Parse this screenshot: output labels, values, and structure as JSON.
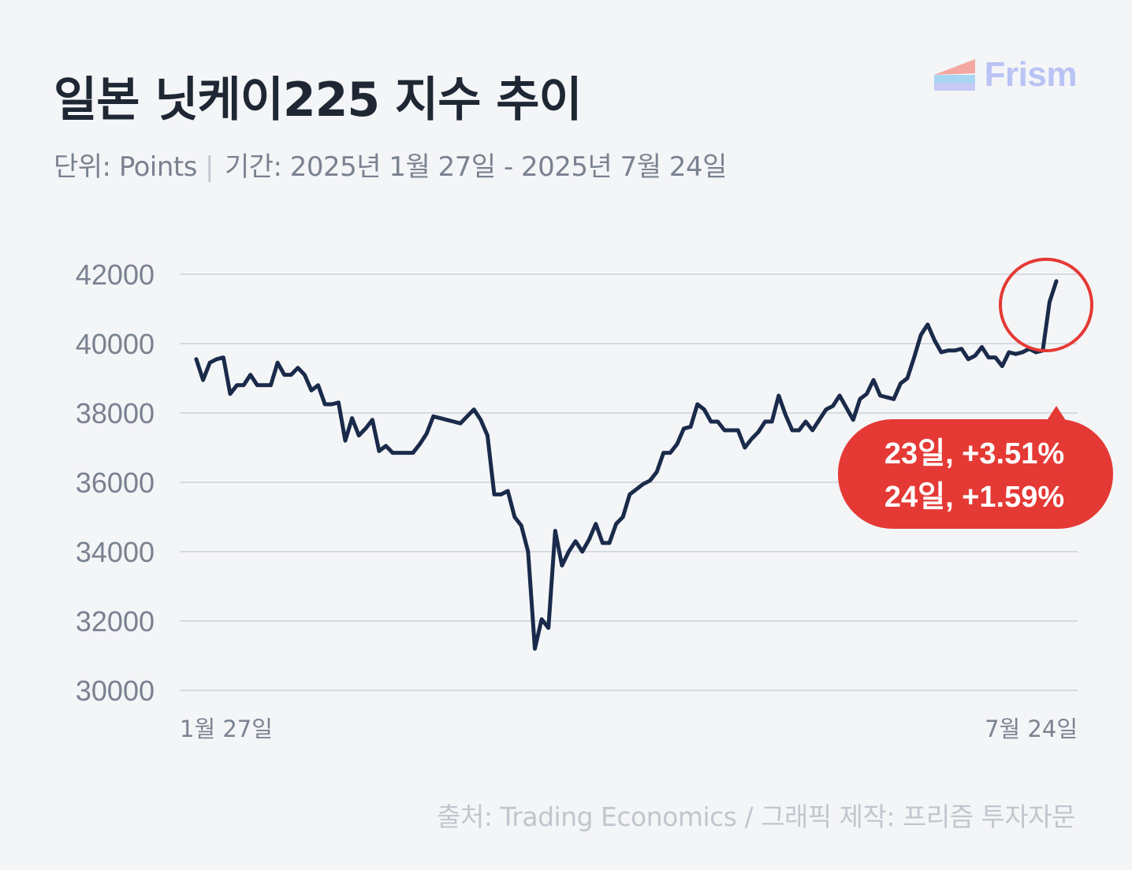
{
  "header": {
    "title": "일본 닛케이225 지수 추이",
    "unit_label": "단위: Points",
    "period_label": "기간: 2025년 1월 27일 - 2025년 7월 24일"
  },
  "logo": {
    "text": "Frism",
    "icon": "frism-logo-icon"
  },
  "annotation": {
    "line1": "23일, +3.51%",
    "line2": "24일, +1.59%",
    "color": "#e53935"
  },
  "source": "출처: Trading Economics / 그래픽 제작: 프리즘 투자자문",
  "chart_data": {
    "type": "line",
    "ylim": [
      30000,
      42000
    ],
    "y_ticks": [
      42000,
      40000,
      38000,
      36000,
      34000,
      32000,
      30000
    ],
    "x_labels": [
      "1월 27일",
      "7월 24일"
    ],
    "line_color": "#1a2a4a",
    "grid": true,
    "series": [
      {
        "values": [
          39550,
          38950,
          39450,
          39550,
          39600,
          38550,
          38800,
          38800,
          39100,
          38800,
          38800,
          38800,
          39450,
          39100,
          39100,
          39300,
          39100,
          38650,
          38800,
          38250,
          38250,
          38300,
          37200,
          37850,
          37350,
          37550,
          37800,
          36900,
          37050,
          36850,
          36850,
          36850,
          36850,
          37100,
          37400,
          37900,
          37850,
          37800,
          37750,
          37700,
          37900,
          38100,
          37800,
          37350,
          35650,
          35650,
          35750,
          35000,
          34750,
          34000,
          31200,
          32050,
          31800,
          34600,
          33600,
          34000,
          34300,
          34000,
          34350,
          34800,
          34250,
          34250,
          34800,
          35000,
          35650,
          35800,
          35950,
          36050,
          36300,
          36850,
          36850,
          37100,
          37550,
          37600,
          38250,
          38100,
          37750,
          37750,
          37500,
          37500,
          37500,
          37000,
          37250,
          37450,
          37750,
          37750,
          38500,
          37950,
          37500,
          37500,
          37750,
          37500,
          37800,
          38100,
          38200,
          38500,
          38150,
          37800,
          38400,
          38550,
          38950,
          38500,
          38450,
          38400,
          38850,
          39000,
          39600,
          40250,
          40550,
          40100,
          39750,
          39800,
          39800,
          39850,
          39550,
          39650,
          39900,
          39600,
          39600,
          39350,
          39750,
          39700,
          39750,
          39850,
          39750,
          39800,
          41200,
          41800
        ]
      }
    ]
  }
}
